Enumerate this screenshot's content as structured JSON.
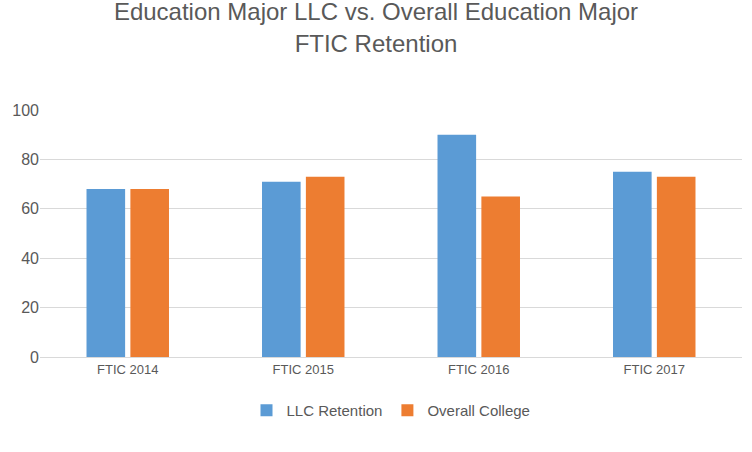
{
  "chart_data": {
    "type": "bar",
    "title": "Education Major LLC vs. Overall Education Major FTIC Retention",
    "categories": [
      "FTIC 2014",
      "FTIC 2015",
      "FTIC 2016",
      "FTIC 2017"
    ],
    "series": [
      {
        "name": "LLC Retention",
        "color": "#5b9bd5",
        "values": [
          68,
          71,
          90,
          75
        ]
      },
      {
        "name": "Overall College",
        "color": "#ed7d31",
        "values": [
          68,
          73,
          65,
          73
        ]
      }
    ],
    "ylim": [
      0,
      100
    ],
    "yticks": [
      0,
      20,
      40,
      60,
      80,
      100
    ],
    "grid": true,
    "legend": "bottom"
  }
}
